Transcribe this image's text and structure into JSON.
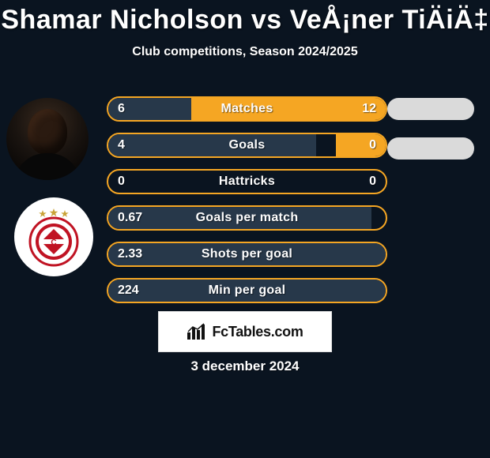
{
  "title": "Shamar Nicholson vs VeÅ¡ner TiÄiÄ‡",
  "subtitle": "Club competitions, Season 2024/2025",
  "date": "3 december 2024",
  "branding": "FcTables.com",
  "colors": {
    "background": "#0a1420",
    "row_border": "#f5a623",
    "fill_dark": "#27384a",
    "fill_orange": "#f5a623",
    "pill_grey": "#dadada",
    "text": "#ffffff"
  },
  "pills": [
    {
      "color": "#dadada"
    },
    {
      "color": "#dadada"
    }
  ],
  "rows": [
    {
      "label": "Matches",
      "left_value": "6",
      "right_value": "12",
      "left_pct": 30,
      "right_pct": 70,
      "left_fill": "#27384a",
      "right_fill": "#f5a623",
      "border": "#f5a623"
    },
    {
      "label": "Goals",
      "left_value": "4",
      "right_value": "0",
      "left_pct": 75,
      "right_pct": 18,
      "left_fill": "#27384a",
      "right_fill": "#f5a623",
      "border": "#f5a623"
    },
    {
      "label": "Hattricks",
      "left_value": "0",
      "right_value": "0",
      "left_pct": 0,
      "right_pct": 0,
      "left_fill": "#27384a",
      "right_fill": "#f5a623",
      "border": "#f5a623"
    },
    {
      "label": "Goals per match",
      "left_value": "0.67",
      "right_value": "",
      "left_pct": 95,
      "right_pct": 0,
      "left_fill": "#27384a",
      "right_fill": "#f5a623",
      "border": "#f5a623"
    },
    {
      "label": "Shots per goal",
      "left_value": "2.33",
      "right_value": "",
      "left_pct": 100,
      "right_pct": 0,
      "left_fill": "#27384a",
      "right_fill": "#f5a623",
      "border": "#f5a623"
    },
    {
      "label": "Min per goal",
      "left_value": "224",
      "right_value": "",
      "left_pct": 100,
      "right_pct": 0,
      "left_fill": "#27384a",
      "right_fill": "#f5a623",
      "border": "#f5a623"
    }
  ]
}
